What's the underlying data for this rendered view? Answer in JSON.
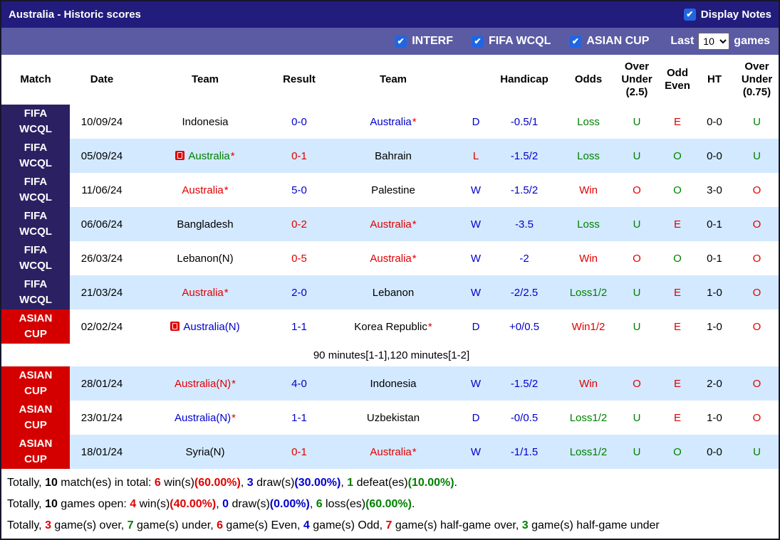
{
  "colors": {
    "title_bar_bg": "#221c7d",
    "filter_bar_bg": "#5b5ba4",
    "fifa_badge_bg": "#2b2162",
    "asian_badge_bg": "#d40000",
    "row_stripe": "#d3e9ff",
    "text_blue": "#0000cc",
    "text_red": "#e00000",
    "text_green": "#008000",
    "checkbox_blue": "#2166e0"
  },
  "icons": {
    "check": "✔"
  },
  "title_bar": {
    "title": "Australia - Historic scores",
    "display_notes_label": "Display Notes",
    "display_notes_checked": true
  },
  "filter_bar": {
    "checkboxes": [
      {
        "label": "INTERF",
        "checked": true
      },
      {
        "label": "FIFA WCQL",
        "checked": true
      },
      {
        "label": "ASIAN CUP",
        "checked": true
      }
    ],
    "last_label": "Last",
    "games_count": "10",
    "games_label": "games"
  },
  "table": {
    "headers": [
      "Match",
      "Date",
      "Team",
      "Result",
      "Team",
      "",
      "Handicap",
      "Odds",
      "Over Under (2.5)",
      "Odd Even",
      "HT",
      "Over Under (0.75)"
    ],
    "rows": [
      {
        "competition": "FIFA WCQL",
        "date": "10/09/24",
        "home": {
          "name": "Indonesia",
          "color": "black",
          "star": false,
          "red_card": false
        },
        "result": {
          "text": "0-0",
          "color": "blue"
        },
        "away": {
          "name": "Australia",
          "color": "blue",
          "star": true,
          "red_card": false
        },
        "wdl": {
          "text": "D",
          "color": "blue"
        },
        "handicap": {
          "text": "-0.5/1",
          "color": "blue"
        },
        "odds": {
          "text": "Loss",
          "color": "green"
        },
        "over_under_25": {
          "text": "U",
          "color": "green"
        },
        "odd_even": {
          "text": "E",
          "color": "red"
        },
        "ht": "0-0",
        "over_under_075": {
          "text": "U",
          "color": "green"
        },
        "note": null
      },
      {
        "competition": "FIFA WCQL",
        "date": "05/09/24",
        "home": {
          "name": "Australia",
          "color": "green",
          "star": true,
          "red_card": true
        },
        "result": {
          "text": "0-1",
          "color": "red"
        },
        "away": {
          "name": "Bahrain",
          "color": "black",
          "star": false,
          "red_card": false
        },
        "wdl": {
          "text": "L",
          "color": "red"
        },
        "handicap": {
          "text": "-1.5/2",
          "color": "blue"
        },
        "odds": {
          "text": "Loss",
          "color": "green"
        },
        "over_under_25": {
          "text": "U",
          "color": "green"
        },
        "odd_even": {
          "text": "O",
          "color": "green"
        },
        "ht": "0-0",
        "over_under_075": {
          "text": "U",
          "color": "green"
        },
        "note": null
      },
      {
        "competition": "FIFA WCQL",
        "date": "11/06/24",
        "home": {
          "name": "Australia",
          "color": "red",
          "star": true,
          "red_card": false
        },
        "result": {
          "text": "5-0",
          "color": "blue"
        },
        "away": {
          "name": "Palestine",
          "color": "black",
          "star": false,
          "red_card": false
        },
        "wdl": {
          "text": "W",
          "color": "blue"
        },
        "handicap": {
          "text": "-1.5/2",
          "color": "blue"
        },
        "odds": {
          "text": "Win",
          "color": "red"
        },
        "over_under_25": {
          "text": "O",
          "color": "red"
        },
        "odd_even": {
          "text": "O",
          "color": "green"
        },
        "ht": "3-0",
        "over_under_075": {
          "text": "O",
          "color": "red"
        },
        "note": null
      },
      {
        "competition": "FIFA WCQL",
        "date": "06/06/24",
        "home": {
          "name": "Bangladesh",
          "color": "black",
          "star": false,
          "red_card": false
        },
        "result": {
          "text": "0-2",
          "color": "red"
        },
        "away": {
          "name": "Australia",
          "color": "red",
          "star": true,
          "red_card": false
        },
        "wdl": {
          "text": "W",
          "color": "blue"
        },
        "handicap": {
          "text": "-3.5",
          "color": "blue"
        },
        "odds": {
          "text": "Loss",
          "color": "green"
        },
        "over_under_25": {
          "text": "U",
          "color": "green"
        },
        "odd_even": {
          "text": "E",
          "color": "red"
        },
        "ht": "0-1",
        "over_under_075": {
          "text": "O",
          "color": "red"
        },
        "note": null
      },
      {
        "competition": "FIFA WCQL",
        "date": "26/03/24",
        "home": {
          "name": "Lebanon(N)",
          "color": "black",
          "star": false,
          "red_card": false
        },
        "result": {
          "text": "0-5",
          "color": "red"
        },
        "away": {
          "name": "Australia",
          "color": "red",
          "star": true,
          "red_card": false
        },
        "wdl": {
          "text": "W",
          "color": "blue"
        },
        "handicap": {
          "text": "-2",
          "color": "blue"
        },
        "odds": {
          "text": "Win",
          "color": "red"
        },
        "over_under_25": {
          "text": "O",
          "color": "red"
        },
        "odd_even": {
          "text": "O",
          "color": "green"
        },
        "ht": "0-1",
        "over_under_075": {
          "text": "O",
          "color": "red"
        },
        "note": null
      },
      {
        "competition": "FIFA WCQL",
        "date": "21/03/24",
        "home": {
          "name": "Australia",
          "color": "red",
          "star": true,
          "red_card": false
        },
        "result": {
          "text": "2-0",
          "color": "blue"
        },
        "away": {
          "name": "Lebanon",
          "color": "black",
          "star": false,
          "red_card": false
        },
        "wdl": {
          "text": "W",
          "color": "blue"
        },
        "handicap": {
          "text": "-2/2.5",
          "color": "blue"
        },
        "odds": {
          "text": "Loss1/2",
          "color": "green"
        },
        "over_under_25": {
          "text": "U",
          "color": "green"
        },
        "odd_even": {
          "text": "E",
          "color": "red"
        },
        "ht": "1-0",
        "over_under_075": {
          "text": "O",
          "color": "red"
        },
        "note": null
      },
      {
        "competition": "ASIAN CUP",
        "date": "02/02/24",
        "home": {
          "name": "Australia(N)",
          "color": "blue",
          "star": false,
          "red_card": true
        },
        "result": {
          "text": "1-1",
          "color": "blue"
        },
        "away": {
          "name": "Korea Republic",
          "color": "black",
          "star": true,
          "red_card": false
        },
        "wdl": {
          "text": "D",
          "color": "blue"
        },
        "handicap": {
          "text": "+0/0.5",
          "color": "blue"
        },
        "odds": {
          "text": "Win1/2",
          "color": "red"
        },
        "over_under_25": {
          "text": "U",
          "color": "green"
        },
        "odd_even": {
          "text": "E",
          "color": "red"
        },
        "ht": "1-0",
        "over_under_075": {
          "text": "O",
          "color": "red"
        },
        "note": "90 minutes[1-1],120 minutes[1-2]"
      },
      {
        "competition": "ASIAN CUP",
        "date": "28/01/24",
        "home": {
          "name": "Australia(N)",
          "color": "red",
          "star": true,
          "red_card": false
        },
        "result": {
          "text": "4-0",
          "color": "blue"
        },
        "away": {
          "name": "Indonesia",
          "color": "black",
          "star": false,
          "red_card": false
        },
        "wdl": {
          "text": "W",
          "color": "blue"
        },
        "handicap": {
          "text": "-1.5/2",
          "color": "blue"
        },
        "odds": {
          "text": "Win",
          "color": "red"
        },
        "over_under_25": {
          "text": "O",
          "color": "red"
        },
        "odd_even": {
          "text": "E",
          "color": "red"
        },
        "ht": "2-0",
        "over_under_075": {
          "text": "O",
          "color": "red"
        },
        "note": null
      },
      {
        "competition": "ASIAN CUP",
        "date": "23/01/24",
        "home": {
          "name": "Australia(N)",
          "color": "blue",
          "star": true,
          "red_card": false
        },
        "result": {
          "text": "1-1",
          "color": "blue"
        },
        "away": {
          "name": "Uzbekistan",
          "color": "black",
          "star": false,
          "red_card": false
        },
        "wdl": {
          "text": "D",
          "color": "blue"
        },
        "handicap": {
          "text": "-0/0.5",
          "color": "blue"
        },
        "odds": {
          "text": "Loss1/2",
          "color": "green"
        },
        "over_under_25": {
          "text": "U",
          "color": "green"
        },
        "odd_even": {
          "text": "E",
          "color": "red"
        },
        "ht": "1-0",
        "over_under_075": {
          "text": "O",
          "color": "red"
        },
        "note": null
      },
      {
        "competition": "ASIAN CUP",
        "date": "18/01/24",
        "home": {
          "name": "Syria(N)",
          "color": "black",
          "star": false,
          "red_card": false
        },
        "result": {
          "text": "0-1",
          "color": "red"
        },
        "away": {
          "name": "Australia",
          "color": "red",
          "star": true,
          "red_card": false
        },
        "wdl": {
          "text": "W",
          "color": "blue"
        },
        "handicap": {
          "text": "-1/1.5",
          "color": "blue"
        },
        "odds": {
          "text": "Loss1/2",
          "color": "green"
        },
        "over_under_25": {
          "text": "U",
          "color": "green"
        },
        "odd_even": {
          "text": "O",
          "color": "green"
        },
        "ht": "0-0",
        "over_under_075": {
          "text": "U",
          "color": "green"
        },
        "note": null
      }
    ]
  },
  "summary_lines": [
    {
      "segments": [
        {
          "t": "Totally, "
        },
        {
          "t": "10",
          "b": 1
        },
        {
          "t": " match(es) in total: "
        },
        {
          "t": "6",
          "c": "red",
          "b": 1
        },
        {
          "t": " win(s)"
        },
        {
          "t": "(60.00%)",
          "c": "red",
          "b": 1
        },
        {
          "t": ", "
        },
        {
          "t": "3",
          "c": "blue",
          "b": 1
        },
        {
          "t": " draw(s)"
        },
        {
          "t": "(30.00%)",
          "c": "blue",
          "b": 1
        },
        {
          "t": ", "
        },
        {
          "t": "1",
          "c": "green",
          "b": 1
        },
        {
          "t": " defeat(es)"
        },
        {
          "t": "(10.00%)",
          "c": "green",
          "b": 1
        },
        {
          "t": "."
        }
      ]
    },
    {
      "segments": [
        {
          "t": "Totally, "
        },
        {
          "t": "10",
          "b": 1
        },
        {
          "t": " games open: "
        },
        {
          "t": "4",
          "c": "red",
          "b": 1
        },
        {
          "t": " win(s)"
        },
        {
          "t": "(40.00%)",
          "c": "red",
          "b": 1
        },
        {
          "t": ", "
        },
        {
          "t": "0",
          "c": "blue",
          "b": 1
        },
        {
          "t": " draw(s)"
        },
        {
          "t": "(0.00%)",
          "c": "blue",
          "b": 1
        },
        {
          "t": ", "
        },
        {
          "t": "6",
          "c": "green",
          "b": 1
        },
        {
          "t": " loss(es)"
        },
        {
          "t": "(60.00%)",
          "c": "green",
          "b": 1
        },
        {
          "t": "."
        }
      ]
    },
    {
      "segments": [
        {
          "t": "Totally, "
        },
        {
          "t": "3",
          "c": "red",
          "b": 1
        },
        {
          "t": " game(s) over, "
        },
        {
          "t": "7",
          "c": "green",
          "b": 1
        },
        {
          "t": " game(s) under, "
        },
        {
          "t": "6",
          "c": "red",
          "b": 1
        },
        {
          "t": " game(s) Even, "
        },
        {
          "t": "4",
          "c": "blue",
          "b": 1
        },
        {
          "t": " game(s) Odd, "
        },
        {
          "t": "7",
          "c": "red",
          "b": 1
        },
        {
          "t": " game(s) half-game over, "
        },
        {
          "t": "3",
          "c": "green",
          "b": 1
        },
        {
          "t": " game(s) half-game under"
        }
      ]
    }
  ]
}
